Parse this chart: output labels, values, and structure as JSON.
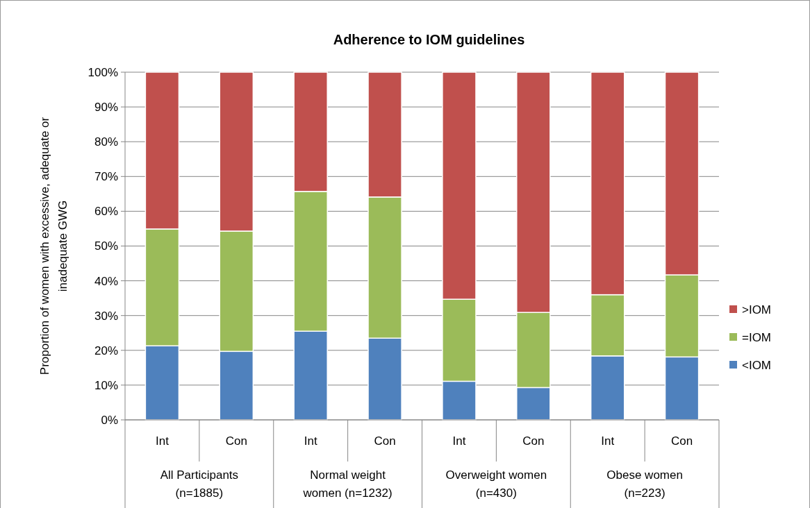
{
  "chart_data": {
    "type": "bar",
    "title": "Adherence to IOM guidelines",
    "ylabel": "Proportion of women with excessive, adequate or\ninadequate GWG",
    "categories": [
      "Int",
      "Con",
      "Int",
      "Con",
      "Int",
      "Con",
      "Int",
      "Con"
    ],
    "series": [
      {
        "name": "<IOM",
        "color": "#4f81bd",
        "values": [
          21.3,
          19.7,
          25.5,
          23.5,
          11.1,
          9.3,
          18.4,
          18.1
        ]
      },
      {
        "name": "=IOM",
        "color": "#9bbb59",
        "values": [
          33.6,
          34.6,
          40.2,
          40.6,
          23.6,
          21.6,
          17.6,
          23.6
        ]
      },
      {
        "name": ">IOM",
        "color": "#c0504d",
        "values": [
          45.1,
          45.7,
          34.3,
          35.9,
          65.3,
          69.1,
          64.0,
          58.3
        ]
      }
    ],
    "stacked": true,
    "ylim": [
      0,
      100
    ],
    "yticks": [
      {
        "value": 0,
        "label": "0%"
      },
      {
        "value": 10,
        "label": "10%"
      },
      {
        "value": 20,
        "label": "20%"
      },
      {
        "value": 30,
        "label": "30%"
      },
      {
        "value": 40,
        "label": "40%"
      },
      {
        "value": 50,
        "label": "50%"
      },
      {
        "value": 60,
        "label": "60%"
      },
      {
        "value": 70,
        "label": "70%"
      },
      {
        "value": 80,
        "label": "80%"
      },
      {
        "value": 90,
        "label": "90%"
      },
      {
        "value": 100,
        "label": "100%"
      }
    ],
    "grid": "y",
    "legend": "right",
    "annotations": [
      "All Participants\n(n=1885)",
      "Normal weight\nwomen (n=1232)",
      "Overweight women\n(n=430)",
      "Obese women\n(n=223)"
    ]
  }
}
